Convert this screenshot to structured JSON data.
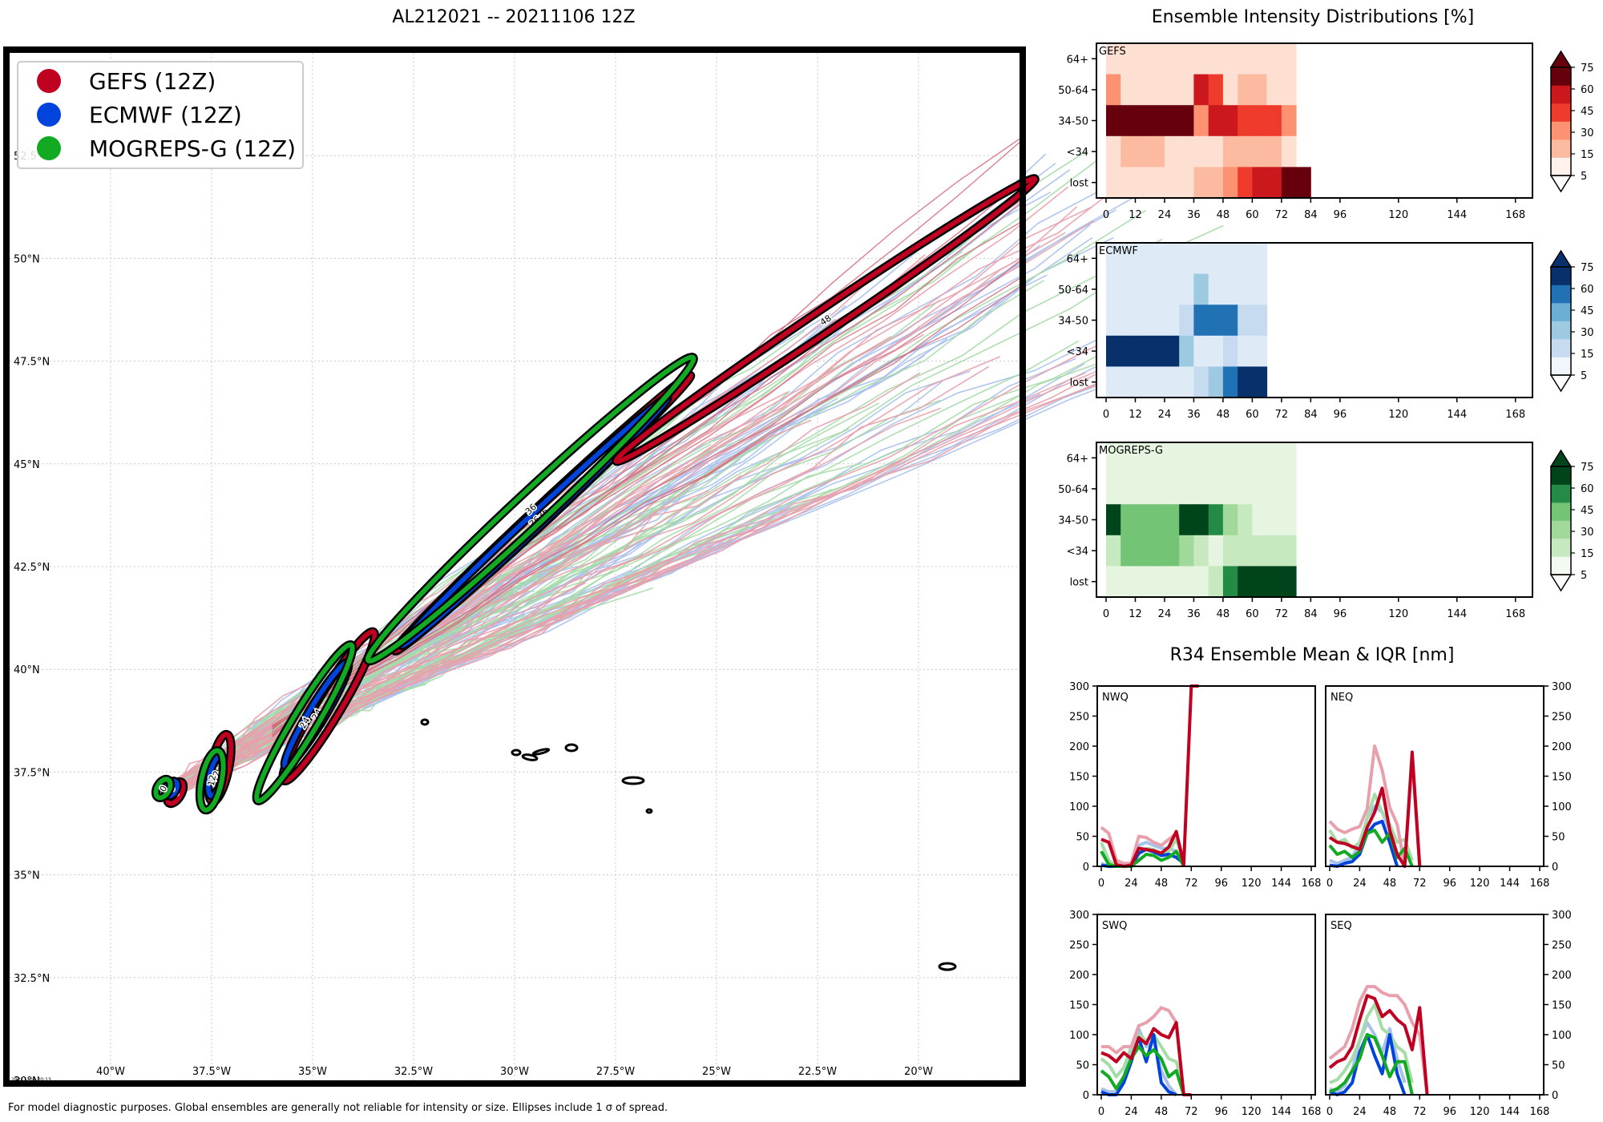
{
  "titles": {
    "main": "AL212021 -- 20211106 12Z",
    "intensity": "Ensemble Intensity Distributions [%]",
    "r34": "R34 Ensemble Mean & IQR [nm]",
    "footnote": "For model diagnostic purposes. Global ensembles are generally not reliable for intensity or size. Ellipses include 1 σ of spread.",
    "stamp": "20211106 20:13"
  },
  "colors": {
    "gefs": "#c00020",
    "ecmwf": "#0044dd",
    "mogreps": "#11aa22",
    "gefs_light": "#e8a0ac",
    "ecmwf_light": "#a8c0ec",
    "mogreps_light": "#a6dca8",
    "reds": [
      "#fee0d2",
      "#fcbba1",
      "#fc9272",
      "#ef3b2c",
      "#cb181d",
      "#67000d"
    ],
    "blues": [
      "#deebf7",
      "#c6dbef",
      "#9ecae1",
      "#6baed6",
      "#2171b5",
      "#08306b"
    ],
    "greens": [
      "#e5f5e0",
      "#c7e9c0",
      "#a1d99b",
      "#74c476",
      "#238b45",
      "#00441b"
    ]
  },
  "chart_data": [
    {
      "type": "scatter",
      "name": "track-map",
      "title": "AL212021 -- 20211106 12Z",
      "xlim": [
        -42.5,
        -17.5
      ],
      "ylim": [
        30,
        55
      ],
      "xticks": [
        -40,
        -37.5,
        -35,
        -32.5,
        -30,
        -27.5,
        -25,
        -22.5,
        -20
      ],
      "xtick_labels": [
        "40°W",
        "37.5°W",
        "35°W",
        "32.5°W",
        "30°W",
        "27.5°W",
        "25°W",
        "22.5°W",
        "20°W"
      ],
      "yticks": [
        30,
        32.5,
        35,
        37.5,
        40,
        42.5,
        45,
        47.5,
        50,
        52.5
      ],
      "ytick_labels": [
        "30°N",
        "32.5°N",
        "35°N",
        "37.5°N",
        "40°N",
        "42.5°N",
        "45°N",
        "47.5°N",
        "50°N",
        "52.5°N"
      ],
      "legend": {
        "location": "top-left",
        "entries": [
          "GEFS (12Z)",
          "ECMWF (12Z)",
          "MOGREPS-G (12Z)"
        ]
      },
      "ellipses": [
        {
          "model": "gefs",
          "hour": "0",
          "lon": -38.4,
          "lat": 37.0,
          "major": 0.6,
          "minor": 0.3,
          "angle": 60
        },
        {
          "model": "ecmwf",
          "hour": "0",
          "lon": -38.5,
          "lat": 37.1,
          "major": 0.4,
          "minor": 0.25,
          "angle": 60
        },
        {
          "model": "mogreps",
          "hour": "0",
          "lon": -38.7,
          "lat": 37.1,
          "major": 0.5,
          "minor": 0.3,
          "angle": 60
        },
        {
          "model": "gefs",
          "hour": "12",
          "lon": -37.3,
          "lat": 37.6,
          "major": 1.7,
          "minor": 0.45,
          "angle": 78
        },
        {
          "model": "ecmwf",
          "hour": "12",
          "lon": -37.4,
          "lat": 37.4,
          "major": 1.0,
          "minor": 0.3,
          "angle": 78
        },
        {
          "model": "mogreps",
          "hour": "12",
          "lon": -37.5,
          "lat": 37.3,
          "major": 1.5,
          "minor": 0.5,
          "angle": 78
        },
        {
          "model": "gefs",
          "hour": "24",
          "lon": -34.6,
          "lat": 39.1,
          "major": 4.3,
          "minor": 0.6,
          "angle": 59
        },
        {
          "model": "ecmwf",
          "hour": "24",
          "lon": -34.9,
          "lat": 38.9,
          "major": 3.0,
          "minor": 0.4,
          "angle": 59
        },
        {
          "model": "mogreps",
          "hour": "24",
          "lon": -35.2,
          "lat": 38.7,
          "major": 4.5,
          "minor": 0.6,
          "angle": 59
        },
        {
          "model": "gefs",
          "hour": "36",
          "lon": -29.3,
          "lat": 43.8,
          "major": 10.0,
          "minor": 0.4,
          "angle": 43
        },
        {
          "model": "ecmwf",
          "hour": "36",
          "lon": -29.5,
          "lat": 43.6,
          "major": 9.0,
          "minor": 0.35,
          "angle": 43
        },
        {
          "model": "mogreps",
          "hour": "36",
          "lon": -29.6,
          "lat": 43.9,
          "major": 11.0,
          "minor": 0.8,
          "angle": 43
        },
        {
          "model": "gefs",
          "hour": "48",
          "lon": -22.3,
          "lat": 48.5,
          "major": 12.5,
          "minor": 0.55,
          "angle": 34
        }
      ],
      "island_note": "Azores and Madeira outlines"
    },
    {
      "type": "heatmap",
      "name": "GEFS",
      "palette": "reds",
      "rows": [
        "64+",
        "50-64",
        "34-50",
        "<34",
        "lost"
      ],
      "x_ticks": [
        0,
        12,
        24,
        36,
        48,
        60,
        72,
        84,
        96,
        120,
        144,
        168
      ],
      "bins": [
        0,
        6,
        12,
        18,
        24,
        30,
        36,
        42,
        48,
        54,
        60,
        66,
        72,
        78
      ],
      "levels": [
        [
          1,
          1,
          1,
          1,
          1,
          1,
          1,
          1,
          1,
          1,
          1,
          1,
          1,
          0
        ],
        [
          3,
          1,
          1,
          1,
          1,
          1,
          5,
          4,
          1,
          2,
          2,
          1,
          1,
          0
        ],
        [
          6,
          6,
          6,
          6,
          6,
          6,
          3,
          5,
          5,
          4,
          4,
          4,
          3,
          0
        ],
        [
          1,
          2,
          2,
          2,
          1,
          1,
          1,
          1,
          2,
          2,
          2,
          2,
          1,
          0
        ],
        [
          1,
          1,
          1,
          1,
          1,
          1,
          2,
          2,
          3,
          4,
          5,
          5,
          6,
          6
        ]
      ],
      "colorbar_ticks": [
        5,
        15,
        30,
        45,
        60,
        75
      ]
    },
    {
      "type": "heatmap",
      "name": "ECMWF",
      "palette": "blues",
      "rows": [
        "64+",
        "50-64",
        "34-50",
        "<34",
        "lost"
      ],
      "x_ticks": [
        0,
        12,
        24,
        36,
        48,
        60,
        72,
        84,
        96,
        120,
        144,
        168
      ],
      "bins": [
        0,
        6,
        12,
        18,
        24,
        30,
        36,
        42,
        48,
        54,
        60
      ],
      "levels": [
        [
          1,
          1,
          1,
          1,
          1,
          1,
          1,
          1,
          1,
          1,
          1
        ],
        [
          1,
          1,
          1,
          1,
          1,
          1,
          3,
          1,
          1,
          1,
          1
        ],
        [
          1,
          1,
          1,
          1,
          1,
          2,
          5,
          5,
          5,
          2,
          2
        ],
        [
          6,
          6,
          6,
          6,
          6,
          3,
          1,
          1,
          2,
          1,
          1
        ],
        [
          1,
          1,
          1,
          1,
          1,
          1,
          2,
          3,
          5,
          6,
          6
        ]
      ],
      "colorbar_ticks": [
        5,
        15,
        30,
        45,
        60,
        75
      ]
    },
    {
      "type": "heatmap",
      "name": "MOGREPS-G",
      "palette": "greens",
      "rows": [
        "64+",
        "50-64",
        "34-50",
        "<34",
        "lost"
      ],
      "x_ticks": [
        0,
        12,
        24,
        36,
        48,
        60,
        72,
        84,
        96,
        120,
        144,
        168
      ],
      "bins": [
        0,
        6,
        12,
        18,
        24,
        30,
        36,
        42,
        48,
        54,
        60,
        66,
        72
      ],
      "levels": [
        [
          1,
          1,
          1,
          1,
          1,
          1,
          1,
          1,
          1,
          1,
          1,
          1,
          1
        ],
        [
          1,
          1,
          1,
          1,
          1,
          1,
          1,
          1,
          1,
          1,
          1,
          1,
          1
        ],
        [
          6,
          4,
          4,
          4,
          4,
          6,
          6,
          5,
          3,
          2,
          1,
          1,
          1
        ],
        [
          2,
          4,
          4,
          4,
          4,
          3,
          2,
          1,
          2,
          2,
          2,
          2,
          2
        ],
        [
          1,
          1,
          1,
          1,
          1,
          1,
          1,
          2,
          5,
          6,
          6,
          6,
          6
        ]
      ],
      "colorbar_ticks": [
        5,
        15,
        30,
        45,
        60,
        75
      ]
    },
    {
      "type": "line",
      "name": "NWQ",
      "x": [
        0,
        6,
        12,
        18,
        24,
        30,
        36,
        42,
        48,
        54,
        60,
        66,
        72,
        78
      ],
      "xticks": [
        0,
        24,
        48,
        72,
        96,
        120,
        144,
        168
      ],
      "ylim": [
        0,
        300
      ],
      "yticks": [
        0,
        50,
        100,
        150,
        200,
        250,
        300
      ],
      "series": [
        {
          "model": "gefs",
          "kind": "mean",
          "values": [
            45,
            40,
            3,
            0,
            2,
            30,
            28,
            26,
            22,
            32,
            58,
            3,
            300,
            300
          ]
        },
        {
          "model": "gefs",
          "kind": "iqr",
          "values": [
            65,
            55,
            10,
            5,
            5,
            50,
            48,
            40,
            35,
            45,
            55,
            10,
            null,
            null
          ]
        },
        {
          "model": "ecmwf",
          "kind": "mean",
          "values": [
            2,
            0,
            0,
            0,
            0,
            22,
            28,
            24,
            18,
            20,
            15,
            5,
            null,
            null
          ]
        },
        {
          "model": "ecmwf",
          "kind": "iqr",
          "values": [
            5,
            0,
            0,
            0,
            0,
            35,
            40,
            35,
            30,
            30,
            25,
            10,
            null,
            null
          ]
        },
        {
          "model": "mogreps",
          "kind": "mean",
          "values": [
            25,
            3,
            0,
            0,
            0,
            10,
            20,
            18,
            10,
            15,
            25,
            0,
            null,
            null
          ]
        },
        {
          "model": "mogreps",
          "kind": "iqr",
          "values": [
            40,
            10,
            0,
            0,
            0,
            20,
            30,
            28,
            20,
            25,
            45,
            10,
            null,
            null
          ]
        }
      ]
    },
    {
      "type": "line",
      "name": "NEQ",
      "x": [
        0,
        6,
        12,
        18,
        24,
        30,
        36,
        42,
        48,
        54,
        60,
        66,
        72,
        78
      ],
      "xticks": [
        0,
        24,
        48,
        72,
        96,
        120,
        144,
        168
      ],
      "ylim": [
        0,
        300
      ],
      "yticks": [
        0,
        50,
        100,
        150,
        200,
        250,
        300
      ],
      "series": [
        {
          "model": "gefs",
          "kind": "mean",
          "values": [
            48,
            40,
            38,
            33,
            28,
            65,
            90,
            130,
            60,
            20,
            0,
            190,
            0,
            null
          ]
        },
        {
          "model": "gefs",
          "kind": "iqr",
          "values": [
            75,
            62,
            56,
            62,
            66,
            96,
            200,
            160,
            98,
            70,
            0,
            180,
            0,
            null
          ]
        },
        {
          "model": "ecmwf",
          "kind": "mean",
          "values": [
            2,
            0,
            5,
            8,
            20,
            55,
            70,
            75,
            40,
            0,
            null,
            null,
            null,
            null
          ]
        },
        {
          "model": "ecmwf",
          "kind": "iqr",
          "values": [
            10,
            5,
            10,
            15,
            40,
            80,
            100,
            90,
            60,
            20,
            null,
            null,
            null,
            null
          ]
        },
        {
          "model": "mogreps",
          "kind": "mean",
          "values": [
            35,
            20,
            25,
            15,
            25,
            55,
            60,
            40,
            55,
            15,
            30,
            0,
            null,
            null
          ]
        },
        {
          "model": "mogreps",
          "kind": "iqr",
          "values": [
            60,
            40,
            45,
            30,
            40,
            80,
            120,
            90,
            70,
            40,
            45,
            10,
            null,
            null
          ]
        }
      ]
    },
    {
      "type": "line",
      "name": "SWQ",
      "x": [
        0,
        6,
        12,
        18,
        24,
        30,
        36,
        42,
        48,
        54,
        60,
        66,
        72,
        78
      ],
      "xticks": [
        0,
        24,
        48,
        72,
        96,
        120,
        144,
        168
      ],
      "ylim": [
        0,
        300
      ],
      "yticks": [
        0,
        50,
        100,
        150,
        200,
        250,
        300
      ],
      "series": [
        {
          "model": "gefs",
          "kind": "mean",
          "values": [
            70,
            65,
            55,
            70,
            60,
            95,
            85,
            110,
            100,
            95,
            120,
            0,
            0,
            null
          ]
        },
        {
          "model": "gefs",
          "kind": "iqr",
          "values": [
            80,
            80,
            70,
            80,
            80,
            115,
            120,
            130,
            145,
            140,
            120,
            0,
            0,
            null
          ]
        },
        {
          "model": "ecmwf",
          "kind": "mean",
          "values": [
            5,
            0,
            0,
            20,
            55,
            95,
            55,
            100,
            20,
            5,
            0,
            null,
            null,
            null
          ]
        },
        {
          "model": "ecmwf",
          "kind": "iqr",
          "values": [
            10,
            5,
            5,
            30,
            70,
            110,
            80,
            90,
            40,
            15,
            0,
            null,
            null,
            null
          ]
        },
        {
          "model": "mogreps",
          "kind": "mean",
          "values": [
            40,
            30,
            10,
            30,
            60,
            80,
            65,
            75,
            60,
            30,
            40,
            0,
            null,
            null
          ]
        },
        {
          "model": "mogreps",
          "kind": "iqr",
          "values": [
            60,
            50,
            30,
            45,
            80,
            100,
            90,
            100,
            80,
            60,
            55,
            10,
            null,
            null
          ]
        }
      ]
    },
    {
      "type": "line",
      "name": "SEQ",
      "x": [
        0,
        6,
        12,
        18,
        24,
        30,
        36,
        42,
        48,
        54,
        60,
        66,
        72,
        78
      ],
      "xticks": [
        0,
        24,
        48,
        72,
        96,
        120,
        144,
        168
      ],
      "ylim": [
        0,
        300
      ],
      "yticks": [
        0,
        50,
        100,
        150,
        200,
        250,
        300
      ],
      "series": [
        {
          "model": "gefs",
          "kind": "mean",
          "values": [
            45,
            55,
            60,
            80,
            125,
            165,
            160,
            130,
            140,
            125,
            115,
            75,
            145,
            0
          ]
        },
        {
          "model": "gefs",
          "kind": "iqr",
          "values": [
            60,
            70,
            80,
            110,
            155,
            180,
            180,
            170,
            165,
            165,
            150,
            120,
            100,
            0
          ]
        },
        {
          "model": "ecmwf",
          "kind": "mean",
          "values": [
            5,
            0,
            5,
            20,
            70,
            100,
            65,
            35,
            100,
            35,
            0,
            null,
            null,
            null
          ]
        },
        {
          "model": "ecmwf",
          "kind": "iqr",
          "values": [
            10,
            5,
            15,
            40,
            90,
            120,
            100,
            70,
            110,
            60,
            20,
            null,
            null,
            null
          ]
        },
        {
          "model": "mogreps",
          "kind": "mean",
          "values": [
            5,
            10,
            20,
            40,
            60,
            100,
            95,
            65,
            30,
            55,
            55,
            0,
            null,
            null
          ]
        },
        {
          "model": "mogreps",
          "kind": "iqr",
          "values": [
            20,
            25,
            40,
            60,
            90,
            130,
            150,
            110,
            100,
            80,
            70,
            20,
            null,
            null
          ]
        }
      ]
    }
  ]
}
